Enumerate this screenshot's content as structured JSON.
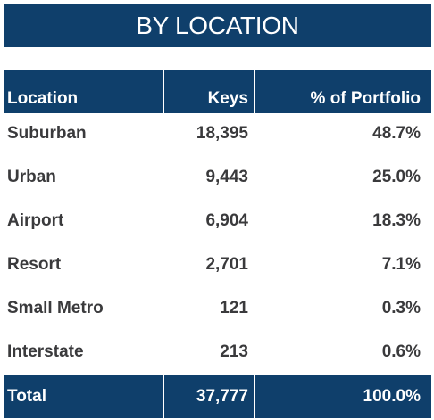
{
  "title": "BY LOCATION",
  "table": {
    "headers": {
      "location": "Location",
      "keys": "Keys",
      "pct": "% of Portfolio"
    },
    "rows": [
      {
        "location": "Suburban",
        "keys": "18,395",
        "pct": "48.7%"
      },
      {
        "location": "Urban",
        "keys": "9,443",
        "pct": "25.0%"
      },
      {
        "location": "Airport",
        "keys": "6,904",
        "pct": "18.3%"
      },
      {
        "location": "Resort",
        "keys": "2,701",
        "pct": "7.1%"
      },
      {
        "location": "Small Metro",
        "keys": "121",
        "pct": "0.3%"
      },
      {
        "location": "Interstate",
        "keys": "213",
        "pct": "0.6%"
      }
    ],
    "total": {
      "location": "Total",
      "keys": "37,777",
      "pct": "100.0%"
    }
  },
  "colors": {
    "header_bg": "#0f3f6b",
    "header_text": "#ffffff",
    "body_text": "#3a3a3c"
  }
}
